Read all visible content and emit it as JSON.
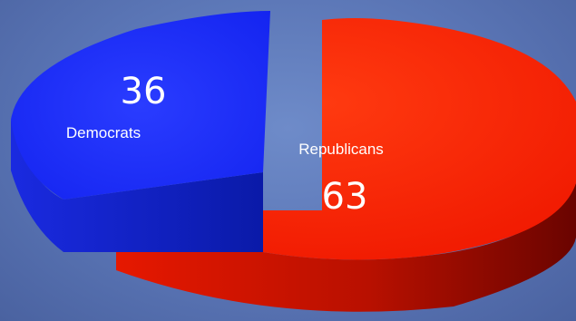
{
  "chart_data": {
    "type": "pie",
    "title": "",
    "slices": [
      {
        "label": "Democrats",
        "value": 36,
        "color": "#1a2cff"
      },
      {
        "label": "Republicans",
        "value": 63,
        "color": "#ff2000"
      }
    ]
  }
}
